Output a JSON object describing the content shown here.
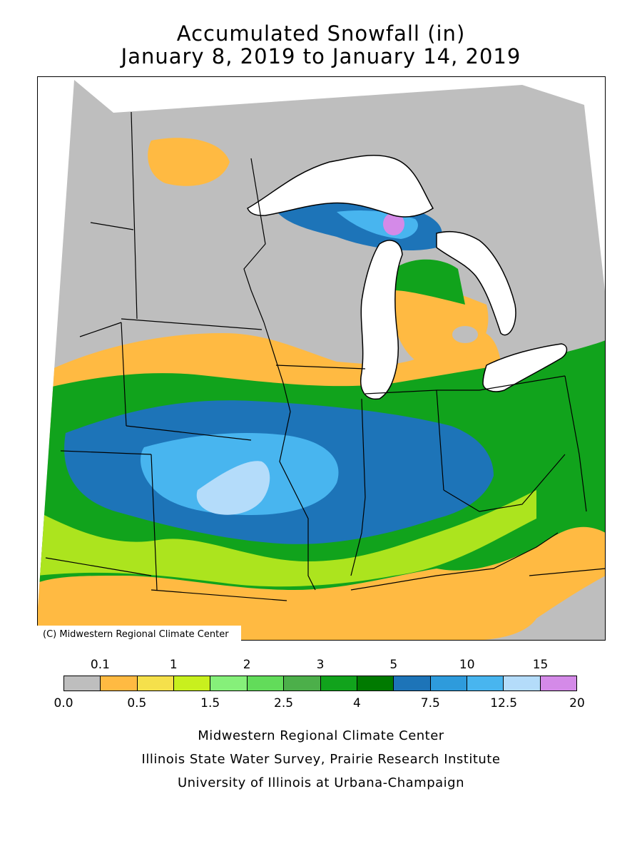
{
  "title": "Accumulated Snowfall (in)",
  "subtitle": "January 8, 2019 to January 14, 2019",
  "map_credit": "(C) Midwestern Regional Climate Center",
  "legend": {
    "top_ticks": [
      "0.1",
      "1",
      "2",
      "3",
      "5",
      "10",
      "15"
    ],
    "bottom_ticks": [
      "0.0",
      "0.5",
      "1.5",
      "2.5",
      "4",
      "7.5",
      "12.5",
      "20"
    ],
    "colors": [
      "#bebebe",
      "#ffba42",
      "#f5e04b",
      "#c8f01e",
      "#86f07a",
      "#62dc5a",
      "#4caf4a",
      "#11a31c",
      "#007a00",
      "#1d74b8",
      "#2e9bdc",
      "#48b5ef",
      "#b4dcfa",
      "#d48ae8"
    ]
  },
  "footer": {
    "line1": "Midwestern Regional Climate Center",
    "line2": "Illinois State Water Survey, Prairie Research Institute",
    "line3": "University of Illinois at Urbana-Champaign"
  }
}
